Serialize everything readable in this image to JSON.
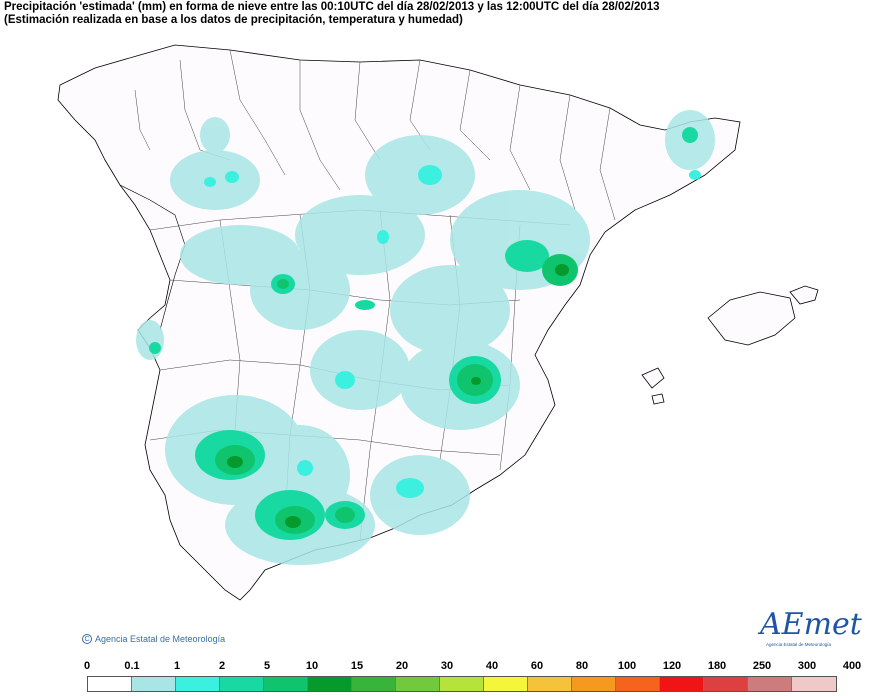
{
  "title": {
    "line1": "Precipitación 'estimada' (mm) en forma de nieve entre las 00:10UTC del día 28/02/2013 y las 12:00UTC del día 28/02/2013",
    "line2": "(Estimación realizada en base a los datos de precipitación, temperatura y humedad)"
  },
  "copyright": "Agencia Estatal de Meteorología",
  "logo": {
    "text": "AEmet",
    "subtitle": "Agencia Estatal de Meteorología"
  },
  "legend": {
    "labels": [
      "0",
      "0.1",
      "1",
      "2",
      "5",
      "10",
      "15",
      "20",
      "30",
      "40",
      "60",
      "80",
      "100",
      "120",
      "180",
      "250",
      "300",
      "400"
    ],
    "colors": [
      "#ffffff",
      "#a9e5e5",
      "#3cf0e0",
      "#19d9a2",
      "#0fc46c",
      "#069a2d",
      "#38b43a",
      "#72c93e",
      "#b6e23c",
      "#f5f53c",
      "#f5c23c",
      "#f59a1e",
      "#f5641e",
      "#f01414",
      "#dc4040",
      "#cc7c7c",
      "#f0c8c8"
    ]
  }
}
